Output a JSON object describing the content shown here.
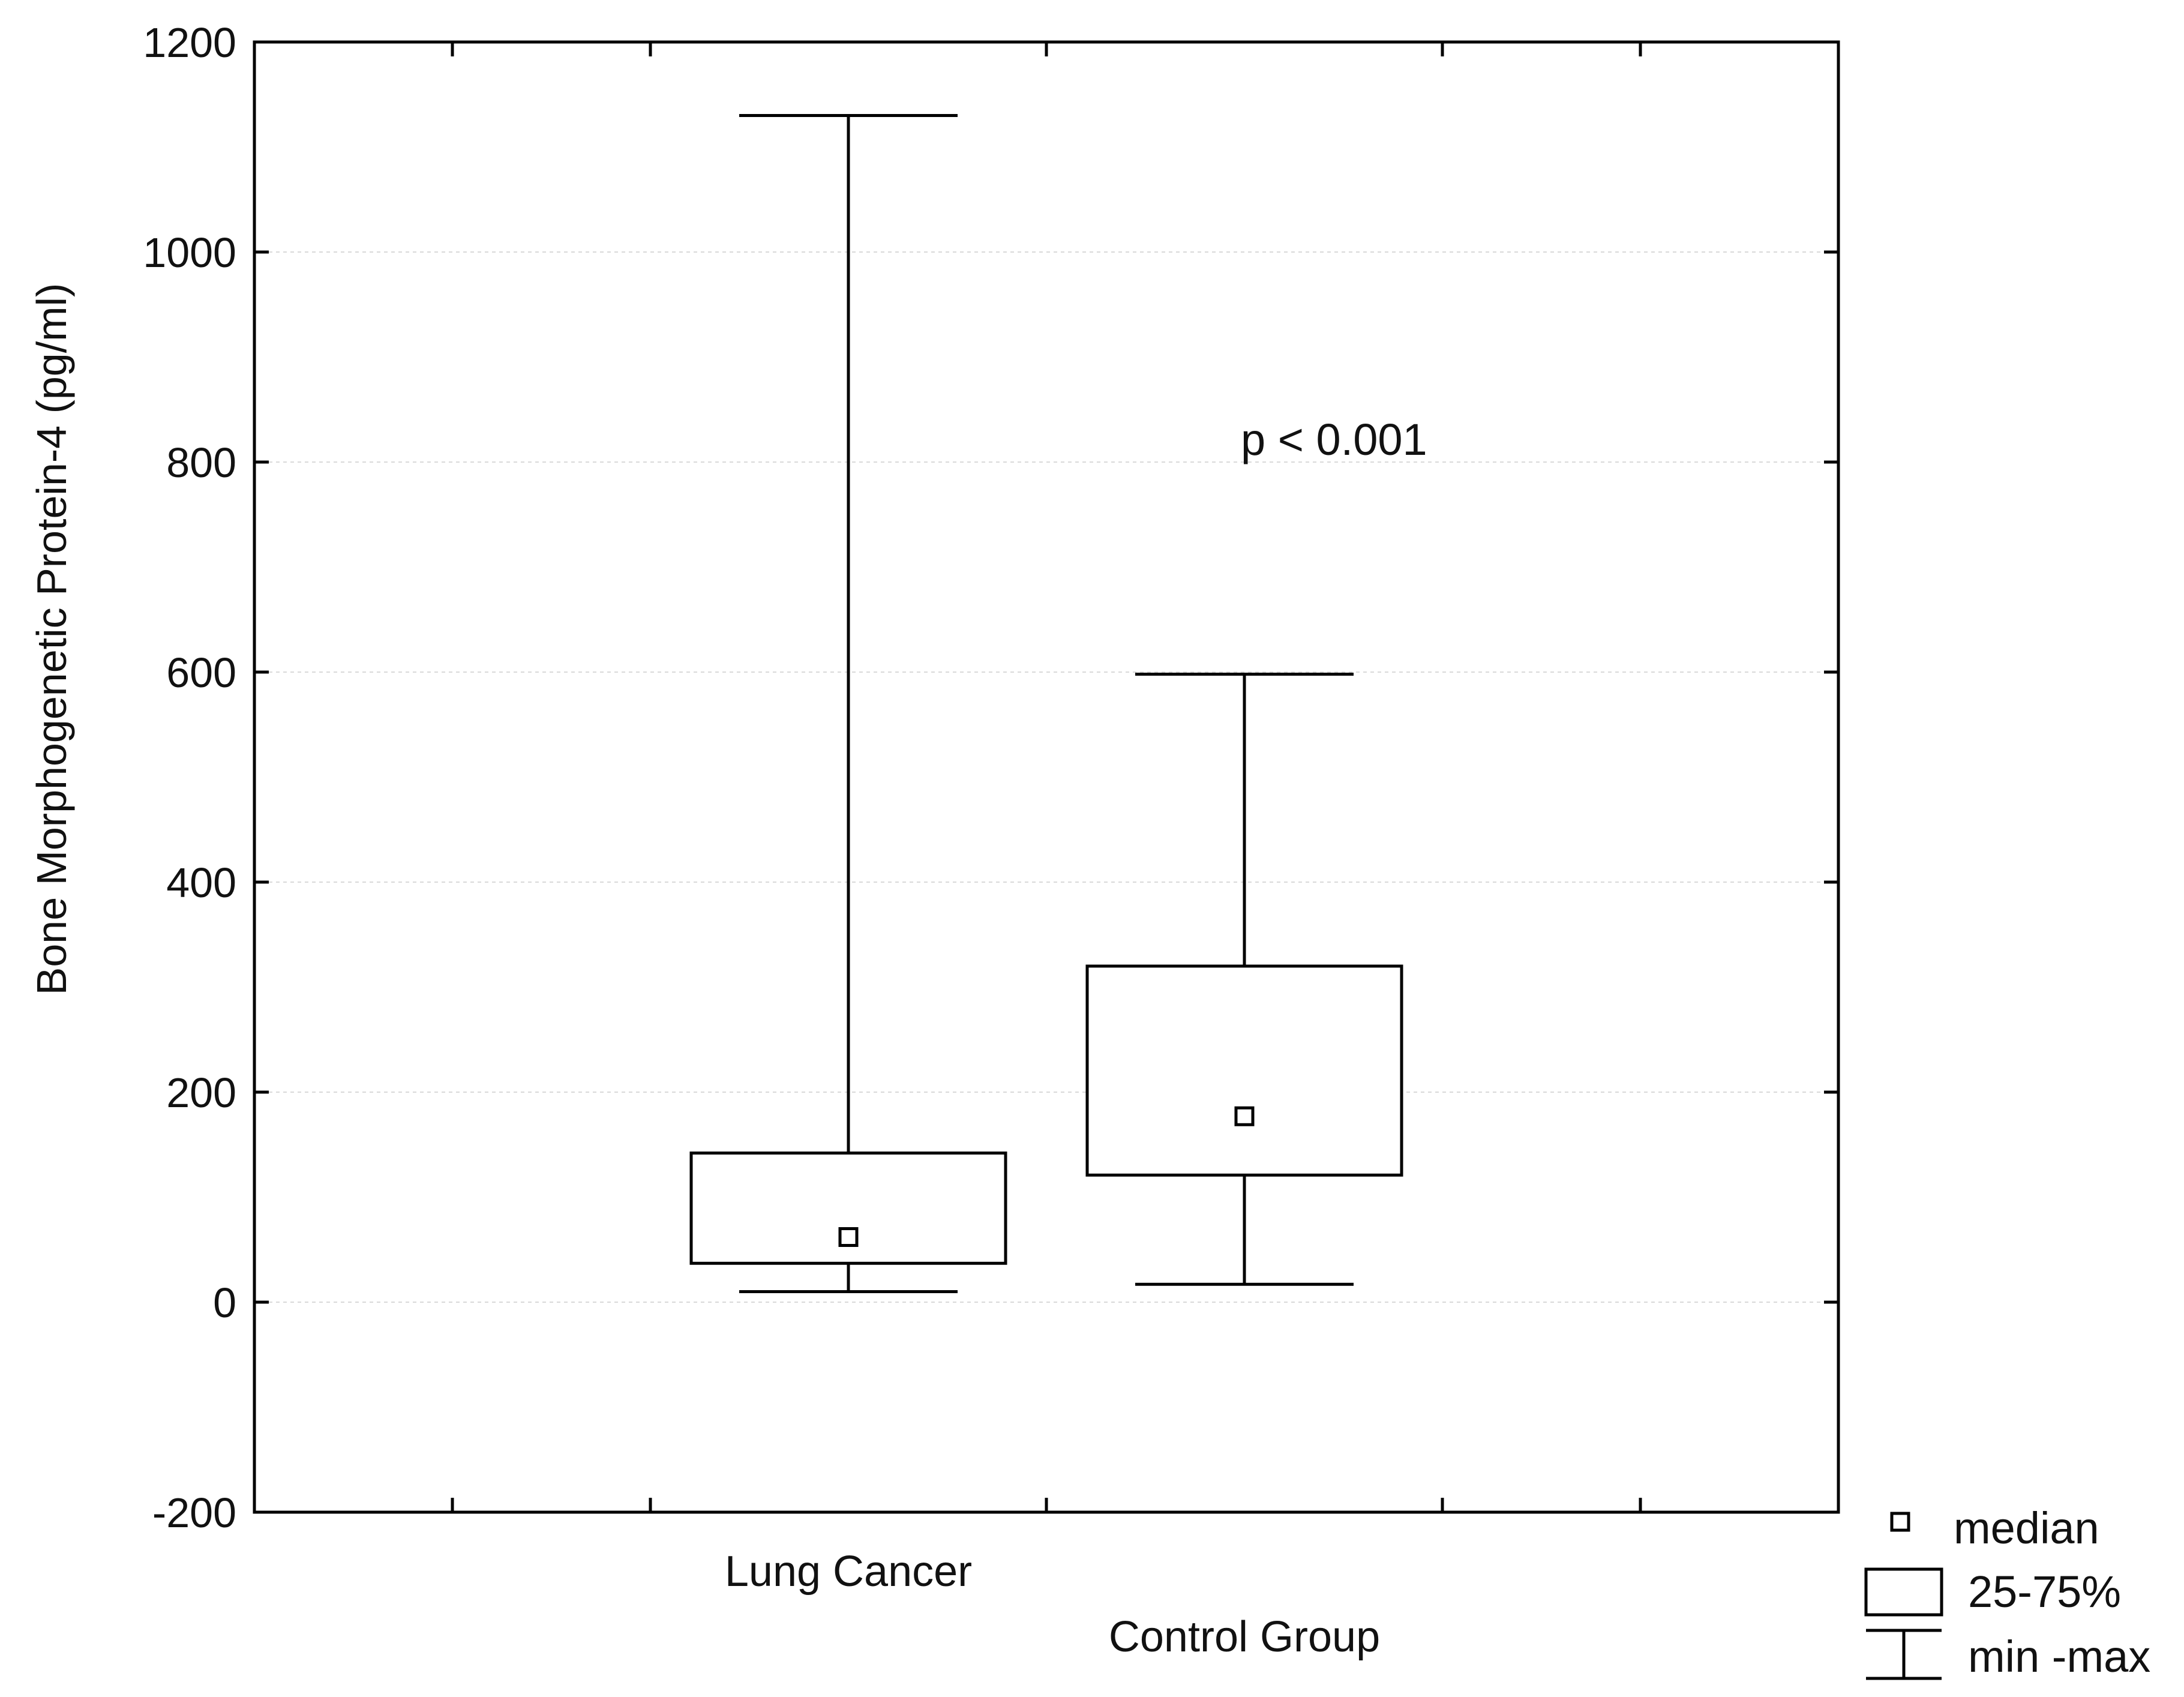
{
  "chart_data": {
    "type": "box",
    "ylabel": "Bone Morphogenetic Protein-4 (pg/ml)",
    "ylim": [
      -200,
      1200
    ],
    "yticks": [
      -200,
      0,
      200,
      400,
      600,
      800,
      1000,
      1200
    ],
    "grid": true,
    "categories": [
      "Lung Cancer",
      "Control Group"
    ],
    "boxes": [
      {
        "category": "Lung Cancer",
        "min": 10,
        "q1": 37,
        "median": 62,
        "q3": 142,
        "max": 1130
      },
      {
        "category": "Control Group",
        "min": 17,
        "q1": 121,
        "median": 177,
        "q3": 320,
        "max": 598
      }
    ],
    "annotation": "p < 0.001",
    "legend": {
      "position": "bottom-right",
      "entries": [
        "median",
        "25-75%",
        "min -max"
      ]
    }
  }
}
